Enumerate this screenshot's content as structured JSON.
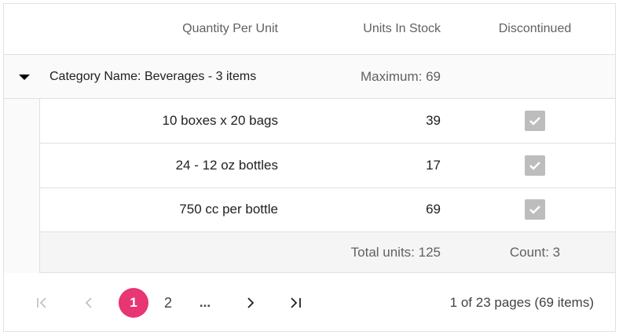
{
  "columns": [
    "Quantity Per Unit",
    "Units In Stock",
    "Discontinued"
  ],
  "group": {
    "label": "Category Name: Beverages - 3 items",
    "aggregate": "Maximum: 69"
  },
  "rows": [
    {
      "quantity": "10 boxes x 20 bags",
      "units": "39",
      "discontinued": true
    },
    {
      "quantity": "24 - 12 oz bottles",
      "units": "17",
      "discontinued": true
    },
    {
      "quantity": "750 cc per bottle",
      "units": "69",
      "discontinued": true
    }
  ],
  "footer": {
    "units": "Total units: 125",
    "discontinued": "Count: 3"
  },
  "pager": {
    "pages": [
      "1",
      "2"
    ],
    "ellipsis": "...",
    "current": "1",
    "info": "1 of 23 pages (69 items)"
  },
  "colors": {
    "accent": "#e73673"
  }
}
